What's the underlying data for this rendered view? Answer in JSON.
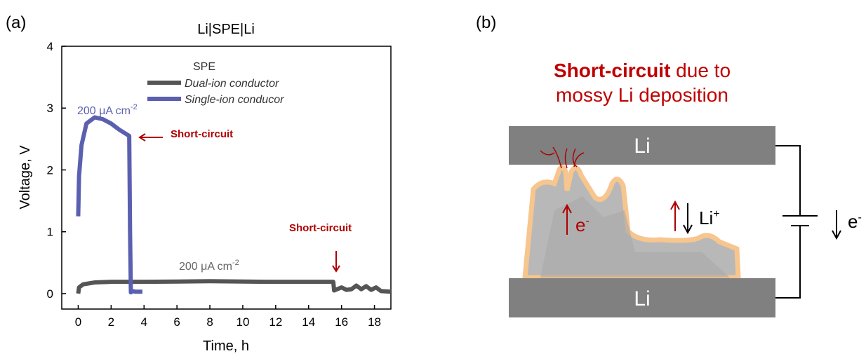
{
  "panel_labels": [
    "(a)",
    "(b)"
  ],
  "chart_data": {
    "type": "line",
    "title": "Li|SPE|Li",
    "x_label": "Time, h",
    "y_label": "Voltage, V",
    "xlim": [
      -1,
      19
    ],
    "xticks": [
      0,
      2,
      4,
      6,
      8,
      10,
      12,
      14,
      16,
      18
    ],
    "ylim": [
      -0.25,
      4
    ],
    "yticks": [
      0,
      1,
      2,
      3,
      4
    ],
    "legend_title": "SPE",
    "legend_position": "upper right",
    "series": [
      {
        "name": "Dual-ion conductor",
        "color": "#555555",
        "x": [
          0,
          0.05,
          0.3,
          1,
          2,
          4,
          8,
          12,
          15.5,
          15.55,
          16,
          16.3,
          16.6,
          16.9,
          17.2,
          17.5,
          17.8,
          18.1,
          18.4,
          19
        ],
        "values": [
          0,
          0.1,
          0.15,
          0.18,
          0.19,
          0.19,
          0.2,
          0.19,
          0.19,
          0.05,
          0.1,
          0.06,
          0.07,
          0.13,
          0.07,
          0.12,
          0.06,
          0.1,
          0.04,
          0.03
        ]
      },
      {
        "name": "Single-ion conducor",
        "color": "#5b5fb0",
        "x": [
          0,
          0.05,
          0.2,
          0.5,
          1,
          1.5,
          2,
          2.5,
          3.1,
          3.15,
          3.2,
          3.3,
          3.5,
          3.9
        ],
        "values": [
          1.25,
          1.9,
          2.4,
          2.75,
          2.85,
          2.82,
          2.75,
          2.65,
          2.55,
          1.0,
          0.02,
          0.04,
          0.03,
          0.03
        ]
      }
    ],
    "annotations": [
      {
        "text": "200 μA cm",
        "sup": "-2",
        "color": "#5b5fb0"
      },
      {
        "text": "200 μA cm",
        "sup": "-2",
        "color": "#666666"
      },
      {
        "text": "Short-circuit",
        "color": "#b00000"
      },
      {
        "text": "Short-circuit",
        "color": "#b00000"
      }
    ]
  },
  "diagram": {
    "title_bold": "Short-circuit",
    "title_rest": " due to",
    "title_line2": "mossy Li deposition",
    "top_electrode": "Li",
    "bottom_electrode": "Li",
    "inner_electron": "e",
    "inner_electron_sup": "-",
    "ion": "Li",
    "ion_sup": "+",
    "circuit_electron": "e",
    "circuit_electron_sup": "-"
  }
}
